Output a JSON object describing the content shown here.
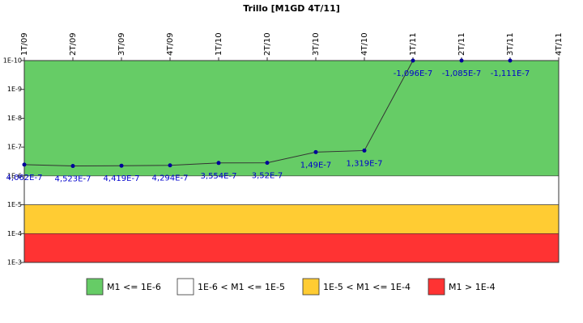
{
  "chart_data": {
    "type": "line",
    "title": "Trillo [M1GD 4T/11]",
    "categories": [
      "1T/09",
      "2T/09",
      "3T/09",
      "4T/09",
      "1T/10",
      "2T/10",
      "3T/10",
      "4T/10",
      "1T/11",
      "2T/11",
      "3T/11",
      "4T/11"
    ],
    "series": [
      {
        "name": "M1",
        "color": "#333333",
        "marker_color": "#000099",
        "label_color": "#0000cc",
        "values": [
          4.062e-07,
          4.523e-07,
          4.419e-07,
          4.294e-07,
          3.554e-07,
          3.52e-07,
          1.49e-07,
          1.319e-07,
          -1.096e-07,
          -1.085e-07,
          -1.111e-07,
          null
        ],
        "value_labels": [
          "4,062E-7",
          "4,523E-7",
          "4,419E-7",
          "4,294E-7",
          "3,554E-7",
          "3,52E-7",
          "1,49E-7",
          "1,319E-7",
          "-1,096E-7",
          "-1,085E-7",
          "-1,111E-7",
          null
        ]
      }
    ],
    "log_scale": true,
    "y_reversed": true,
    "ylim": [
      1e-10,
      0.001
    ],
    "yticks": [
      {
        "value": 1e-10,
        "label": "1E-10"
      },
      {
        "value": 1e-09,
        "label": "1E-9"
      },
      {
        "value": 1e-08,
        "label": "1E-8"
      },
      {
        "value": 1e-07,
        "label": "1E-7"
      },
      {
        "value": 1e-06,
        "label": "1E-6"
      },
      {
        "value": 1e-05,
        "label": "1E-5"
      },
      {
        "value": 0.0001,
        "label": "1E-4"
      },
      {
        "value": 0.001,
        "label": "1E-3"
      }
    ],
    "bands": [
      {
        "name": "M1 <= 1E-6",
        "color": "#66cc66",
        "range": [
          1e-10,
          1e-06
        ]
      },
      {
        "name": "1E-6 < M1 <= 1E-5",
        "color": "#ffffff",
        "range": [
          1e-06,
          1e-05
        ]
      },
      {
        "name": "1E-5 < M1 <= 1E-4",
        "color": "#ffcc33",
        "range": [
          1e-05,
          0.0001
        ]
      },
      {
        "name": "M1 > 1E-4",
        "color": "#ff3333",
        "range": [
          0.0001,
          0.001
        ]
      }
    ],
    "legend_position": "bottom"
  }
}
